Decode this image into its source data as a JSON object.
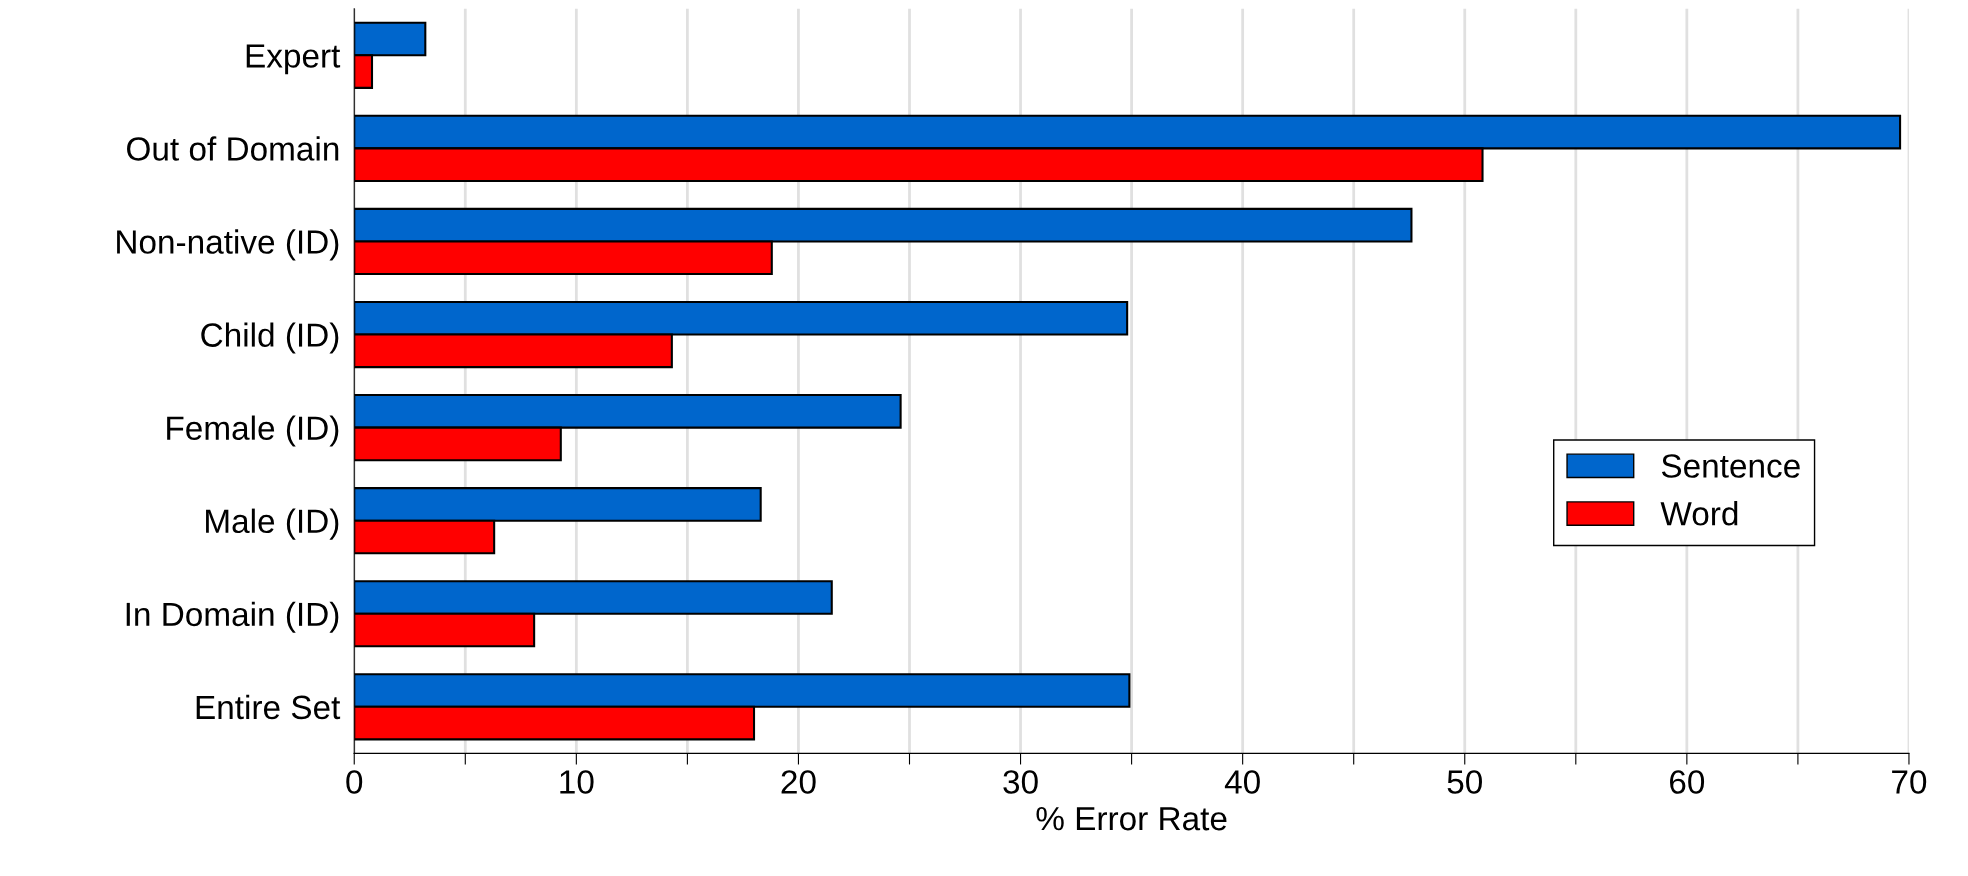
{
  "chart_data": {
    "type": "bar",
    "orientation": "horizontal",
    "xlabel": "% Error Rate",
    "categories": [
      "Expert",
      "Out of Domain",
      "Non-native (ID)",
      "Child (ID)",
      "Female (ID)",
      "Male (ID)",
      "In Domain (ID)",
      "Entire Set"
    ],
    "series": [
      {
        "name": "Sentence",
        "color": "#0066cc",
        "values": [
          3.2,
          69.6,
          47.6,
          34.8,
          24.6,
          18.3,
          21.5,
          34.9
        ]
      },
      {
        "name": "Word",
        "color": "#ff0000",
        "values": [
          0.8,
          50.8,
          18.8,
          14.3,
          9.3,
          6.3,
          8.1,
          18.0
        ]
      }
    ],
    "xlim": [
      0,
      70
    ],
    "xticks": [
      0,
      {
        "value": 5,
        "label": null
      },
      10,
      {
        "value": 15,
        "label": null
      },
      20,
      {
        "value": 25,
        "label": null
      },
      30,
      {
        "value": 35,
        "label": null
      },
      40,
      {
        "value": 45,
        "label": null
      },
      50,
      {
        "value": 55,
        "label": null
      },
      60,
      {
        "value": 65,
        "label": null
      },
      70
    ],
    "grid": "x",
    "legend": "right"
  }
}
